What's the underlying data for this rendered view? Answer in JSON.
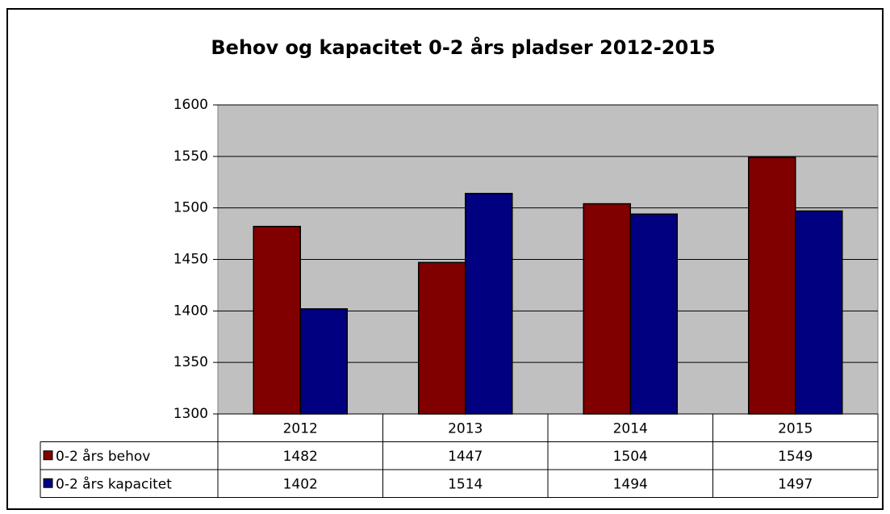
{
  "chart_data": {
    "type": "bar",
    "title": "Behov og kapacitet 0-2 års pladser 2012-2015",
    "categories": [
      "2012",
      "2013",
      "2014",
      "2015"
    ],
    "series": [
      {
        "name": "0-2 års behov",
        "color": "#800000",
        "values": [
          1482,
          1447,
          1504,
          1549
        ]
      },
      {
        "name": "0-2 års kapacitet",
        "color": "#000080",
        "values": [
          1402,
          1514,
          1494,
          1497
        ]
      }
    ],
    "ylim": [
      1300,
      1600
    ],
    "yticks": [
      1300,
      1350,
      1400,
      1450,
      1500,
      1550,
      1600
    ],
    "grid": true
  }
}
